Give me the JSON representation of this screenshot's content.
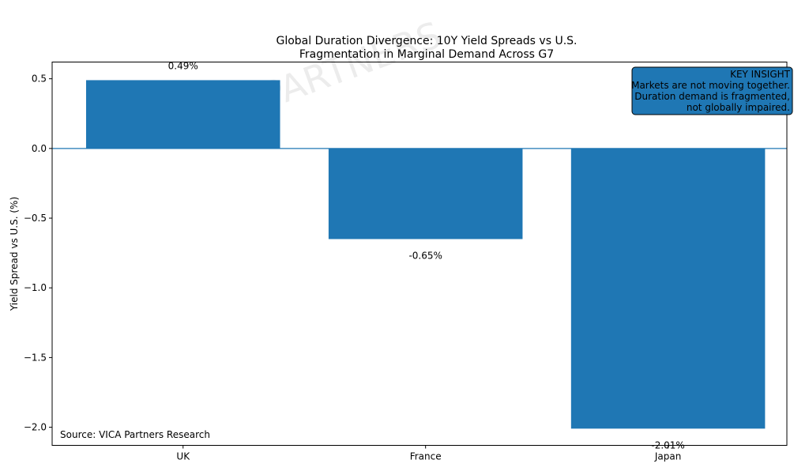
{
  "chart_data": {
    "type": "bar",
    "title": "Global Duration Divergence: 10Y Yield Spreads vs U.S.",
    "subtitle": "Fragmentation in Marginal Demand Across G7",
    "xlabel": "",
    "ylabel": "Yield Spread vs U.S. (%)",
    "categories": [
      "UK",
      "France",
      "Japan"
    ],
    "values": [
      0.49,
      -0.65,
      -2.01
    ],
    "data_labels": [
      "0.49%",
      "-0.65%",
      "-2.01%"
    ],
    "ylim": [
      -2.13,
      0.62
    ],
    "yticks": [
      0.5,
      0.0,
      -0.5,
      -1.0,
      -1.5,
      -2.0
    ],
    "ytick_labels": [
      "0.5",
      "0.0",
      "−0.5",
      "−1.0",
      "−1.5",
      "−2.0"
    ],
    "grid": false,
    "zero_line": true,
    "bar_color": "#1f77b4",
    "annotation": {
      "lines": [
        "KEY INSIGHT",
        "Markets are not moving together.",
        "Duration demand is fragmented,",
        "not globally impaired."
      ],
      "placement": "top-right",
      "background": "#1f77b4"
    },
    "source_note": "Source: VICA Partners Research",
    "watermark": "VICA PARTNERS"
  }
}
